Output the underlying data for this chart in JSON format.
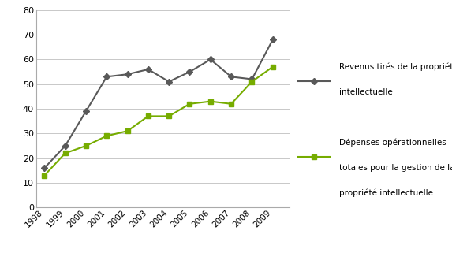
{
  "years": [
    1998,
    1999,
    2000,
    2001,
    2002,
    2003,
    2004,
    2005,
    2006,
    2007,
    2008,
    2009
  ],
  "revenus": [
    16,
    25,
    39,
    53,
    54,
    56,
    51,
    55,
    60,
    53,
    52,
    68
  ],
  "depenses": [
    13,
    22,
    25,
    29,
    31,
    37,
    37,
    42,
    43,
    42,
    51,
    57
  ],
  "revenus_color": "#595959",
  "depenses_color": "#76AC00",
  "ylim": [
    0,
    80
  ],
  "yticks": [
    0,
    10,
    20,
    30,
    40,
    50,
    60,
    70,
    80
  ],
  "legend_revenus_line1": "Revenus tirés de la propriété",
  "legend_revenus_line2": "intellectuelle",
  "legend_depenses_line1": "Dépenses opérationnelles",
  "legend_depenses_line2": "totales pour la gestion de la",
  "legend_depenses_line3": "propriété intellectuelle",
  "background_color": "#ffffff",
  "grid_color": "#c8c8c8"
}
